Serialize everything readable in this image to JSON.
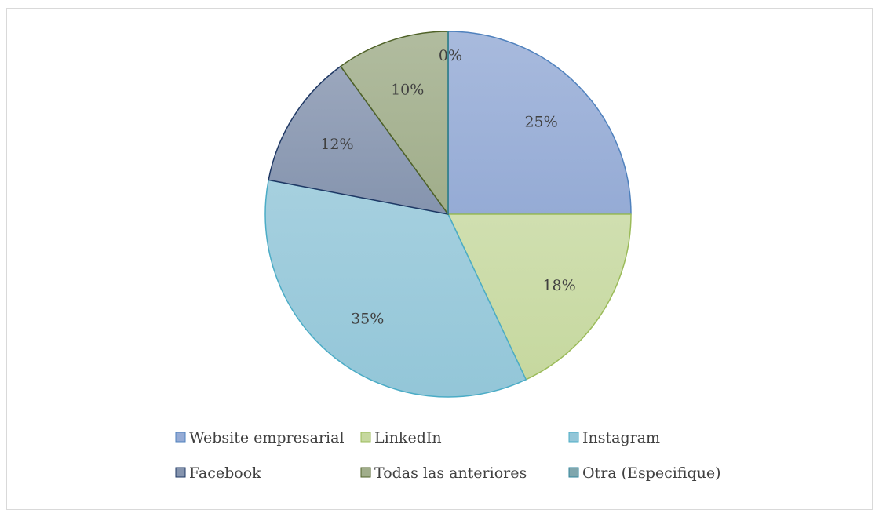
{
  "chart_data": {
    "type": "pie",
    "title": "",
    "legend_position": "bottom",
    "slices": [
      {
        "label": "Website empresarial",
        "value": 25,
        "display": "25%",
        "color": "#95abd5",
        "stroke": "#4f81bd"
      },
      {
        "label": "LinkedIn",
        "value": 18,
        "display": "18%",
        "color": "#c6d89f",
        "stroke": "#9bbb59"
      },
      {
        "label": "Instagram",
        "value": 35,
        "display": "35%",
        "color": "#93c6d8",
        "stroke": "#4bacc6"
      },
      {
        "label": "Facebook",
        "value": 12,
        "display": "12%",
        "color": "#8594ae",
        "stroke": "#1f3864"
      },
      {
        "label": "Todas las anteriores",
        "value": 10,
        "display": "10%",
        "color": "#a0ad8a",
        "stroke": "#4f6228"
      },
      {
        "label": "Otra (Especifique)",
        "value": 0,
        "display": "0%",
        "color": "#7fa6ad",
        "stroke": "#31859c"
      }
    ]
  }
}
